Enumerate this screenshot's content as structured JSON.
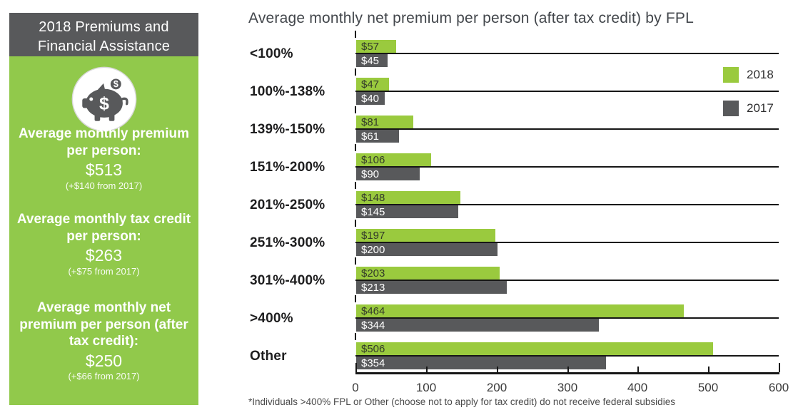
{
  "sidebar": {
    "header": "2018 Premiums and Financial Assistance",
    "icon": "piggy-bank",
    "stats": [
      {
        "label": "Average monthly premium per person:",
        "value": "$513",
        "change": "(+$140 from 2017)"
      },
      {
        "label": "Average monthly tax credit per person:",
        "value": "$263",
        "change": "(+$75 from 2017)"
      },
      {
        "label": "Average monthly net premium per person (after tax credit):",
        "value": "$250",
        "change": "(+$66 from 2017)"
      }
    ],
    "colors": {
      "header_bg": "#58595b",
      "body_bg": "#91c94b"
    }
  },
  "chart_data": {
    "type": "bar",
    "orientation": "horizontal",
    "title": "Average monthly net premium per person (after tax credit) by FPL",
    "categories": [
      "<100%",
      "100%-138%",
      "139%-150%",
      "151%-200%",
      "201%-250%",
      "251%-300%",
      "301%-400%",
      ">400%",
      "Other"
    ],
    "series": [
      {
        "name": "2018",
        "color": "#9aca3e",
        "label_color": "#333a2a",
        "values": [
          57,
          47,
          81,
          106,
          148,
          197,
          203,
          464,
          506
        ],
        "labels": [
          "$57",
          "$47",
          "$81",
          "$106",
          "$148",
          "$197",
          "$203",
          "$464",
          "$506"
        ]
      },
      {
        "name": "2017",
        "color": "#58595b",
        "label_color": "#ffffff",
        "values": [
          45,
          40,
          61,
          90,
          145,
          200,
          213,
          344,
          354
        ],
        "labels": [
          "$45",
          "$40",
          "$61",
          "$90",
          "$145",
          "$200",
          "$213",
          "$344",
          "$354"
        ]
      }
    ],
    "xlim": [
      0,
      600
    ],
    "x_ticks": [
      "0",
      "100",
      "200",
      "300",
      "400",
      "500",
      "600"
    ],
    "grid": "category-lines",
    "legend_position": "top-right",
    "footnote": "*Individuals >400% FPL or Other (choose not to apply for tax credit) do not receive federal subsidies"
  }
}
